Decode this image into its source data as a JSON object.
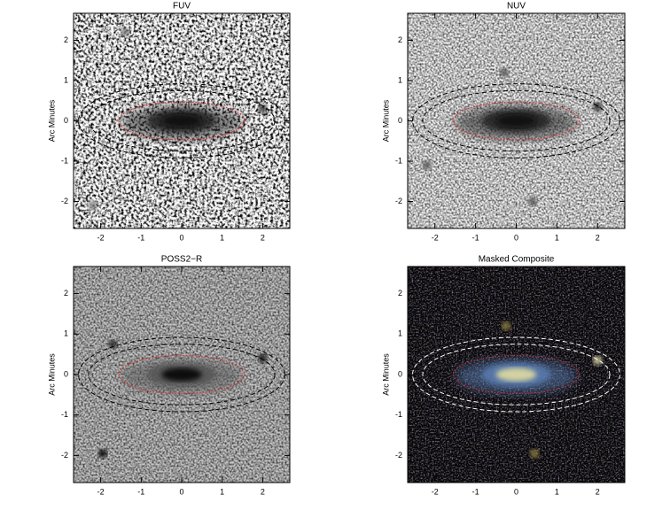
{
  "chart_data": [
    {
      "type": "image",
      "title": "FUV",
      "ylabel": "Arc Minutes",
      "xlim": [
        -2.67,
        2.67
      ],
      "ylim": [
        -2.67,
        2.67
      ],
      "xticks": [
        -2,
        -1,
        0,
        1,
        2
      ],
      "yticks": [
        -2,
        -1,
        0,
        1,
        2
      ]
    },
    {
      "type": "image",
      "title": "NUV",
      "ylabel": "Arc Minutes",
      "xlim": [
        -2.67,
        2.67
      ],
      "ylim": [
        -2.67,
        2.67
      ],
      "xticks": [
        -2,
        -1,
        0,
        1,
        2
      ],
      "yticks": [
        -2,
        -1,
        0,
        1,
        2
      ]
    },
    {
      "type": "image",
      "title": "POSS2−R",
      "ylabel": "Arc Minutes",
      "xlim": [
        -2.67,
        2.67
      ],
      "ylim": [
        -2.67,
        2.67
      ],
      "xticks": [
        -2,
        -1,
        0,
        1,
        2
      ],
      "yticks": [
        -2,
        -1,
        0,
        1,
        2
      ]
    },
    {
      "type": "image",
      "title": "Masked Composite",
      "ylabel": "Arc Minutes",
      "xlim": [
        -2.67,
        2.67
      ],
      "ylim": [
        -2.67,
        2.67
      ],
      "xticks": [
        -2,
        -1,
        0,
        1,
        2
      ],
      "yticks": [
        -2,
        -1,
        0,
        1,
        2
      ]
    }
  ]
}
